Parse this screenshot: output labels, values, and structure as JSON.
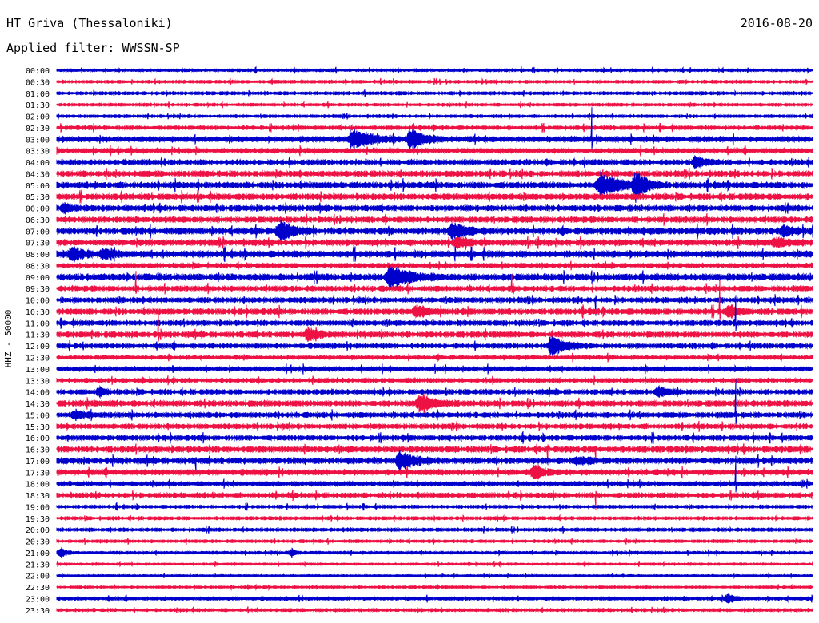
{
  "header": {
    "station": "HT Griva (Thessaloniki)",
    "date": "2016-08-20",
    "filter": "Applied filter: WWSSN-SP"
  },
  "chart_data": {
    "type": "line",
    "title": "HT Griva (Thessaloniki)",
    "ylabel": "HHZ - 50000",
    "rows": [
      "00:00",
      "00:30",
      "01:00",
      "01:30",
      "02:00",
      "02:30",
      "03:00",
      "03:30",
      "04:00",
      "04:30",
      "05:00",
      "05:30",
      "06:00",
      "06:30",
      "07:00",
      "07:30",
      "08:00",
      "08:30",
      "09:00",
      "09:30",
      "10:00",
      "10:30",
      "11:00",
      "11:30",
      "12:00",
      "12:30",
      "13:00",
      "13:30",
      "14:00",
      "14:30",
      "15:00",
      "15:30",
      "16:00",
      "16:30",
      "17:00",
      "17:30",
      "18:00",
      "18:30",
      "19:00",
      "19:30",
      "20:00",
      "20:30",
      "21:00",
      "21:30",
      "22:00",
      "22:30",
      "23:00",
      "23:30"
    ],
    "colors": [
      "#0000cc",
      "#ee1144"
    ],
    "noise": [
      1.2,
      1.2,
      1.3,
      1.2,
      1.2,
      1.6,
      2.2,
      1.9,
      2.0,
      2.2,
      2.4,
      2.3,
      2.2,
      2.2,
      2.6,
      2.4,
      2.6,
      1.8,
      2.6,
      2.0,
      2.0,
      2.3,
      2.0,
      2.2,
      1.9,
      1.6,
      1.8,
      1.7,
      1.9,
      2.2,
      2.0,
      1.9,
      2.0,
      2.4,
      2.4,
      2.2,
      1.8,
      1.9,
      1.3,
      1.3,
      1.4,
      1.2,
      1.2,
      1.0,
      0.9,
      1.0,
      1.4,
      1.3
    ],
    "events": [
      {
        "row": 6,
        "x": 440,
        "amp": 13,
        "dur": 60
      },
      {
        "row": 6,
        "x": 513,
        "amp": 13,
        "dur": 45
      },
      {
        "row": 8,
        "x": 870,
        "amp": 7,
        "dur": 30
      },
      {
        "row": 10,
        "x": 750,
        "amp": 15,
        "dur": 70
      },
      {
        "row": 10,
        "x": 795,
        "amp": 14,
        "dur": 40
      },
      {
        "row": 12,
        "x": 80,
        "amp": 5,
        "dur": 25
      },
      {
        "row": 14,
        "x": 350,
        "amp": 13,
        "dur": 40
      },
      {
        "row": 14,
        "x": 565,
        "amp": 10,
        "dur": 45
      },
      {
        "row": 14,
        "x": 980,
        "amp": 7,
        "dur": 30
      },
      {
        "row": 15,
        "x": 570,
        "amp": 6,
        "dur": 40
      },
      {
        "row": 15,
        "x": 970,
        "amp": 5,
        "dur": 50
      },
      {
        "row": 16,
        "x": 90,
        "amp": 10,
        "dur": 30
      },
      {
        "row": 16,
        "x": 130,
        "amp": 8,
        "dur": 25
      },
      {
        "row": 18,
        "x": 487,
        "amp": 14,
        "dur": 65
      },
      {
        "row": 21,
        "x": 520,
        "amp": 8,
        "dur": 35
      },
      {
        "row": 21,
        "x": 912,
        "amp": 9,
        "dur": 25
      },
      {
        "row": 23,
        "x": 385,
        "amp": 7,
        "dur": 40
      },
      {
        "row": 24,
        "x": 690,
        "amp": 14,
        "dur": 45
      },
      {
        "row": 28,
        "x": 125,
        "amp": 5,
        "dur": 20
      },
      {
        "row": 28,
        "x": 823,
        "amp": 6,
        "dur": 30
      },
      {
        "row": 29,
        "x": 525,
        "amp": 10,
        "dur": 50
      },
      {
        "row": 30,
        "x": 95,
        "amp": 6,
        "dur": 25
      },
      {
        "row": 34,
        "x": 500,
        "amp": 12,
        "dur": 45
      },
      {
        "row": 34,
        "x": 720,
        "amp": 5,
        "dur": 40
      },
      {
        "row": 35,
        "x": 668,
        "amp": 10,
        "dur": 30
      },
      {
        "row": 42,
        "x": 77,
        "amp": 6,
        "dur": 15
      },
      {
        "row": 42,
        "x": 365,
        "amp": 4,
        "dur": 10
      },
      {
        "row": 46,
        "x": 910,
        "amp": 5,
        "dur": 20
      }
    ],
    "spikes": [
      {
        "row": 6,
        "x": 740,
        "amp": 40
      },
      {
        "row": 10,
        "x": 795,
        "amp": 22
      },
      {
        "row": 19,
        "x": 170,
        "amp": 22
      },
      {
        "row": 19,
        "x": 640,
        "amp": 18
      },
      {
        "row": 20,
        "x": 745,
        "amp": 20
      },
      {
        "row": 21,
        "x": 900,
        "amp": 40
      },
      {
        "row": 22,
        "x": 920,
        "amp": 35
      },
      {
        "row": 23,
        "x": 198,
        "amp": 30
      },
      {
        "row": 30,
        "x": 920,
        "amp": 45
      },
      {
        "row": 33,
        "x": 685,
        "amp": 20
      },
      {
        "row": 33,
        "x": 745,
        "amp": 15
      },
      {
        "row": 34,
        "x": 245,
        "amp": 15
      },
      {
        "row": 36,
        "x": 920,
        "amp": 35
      },
      {
        "row": 37,
        "x": 745,
        "amp": 18
      }
    ]
  }
}
